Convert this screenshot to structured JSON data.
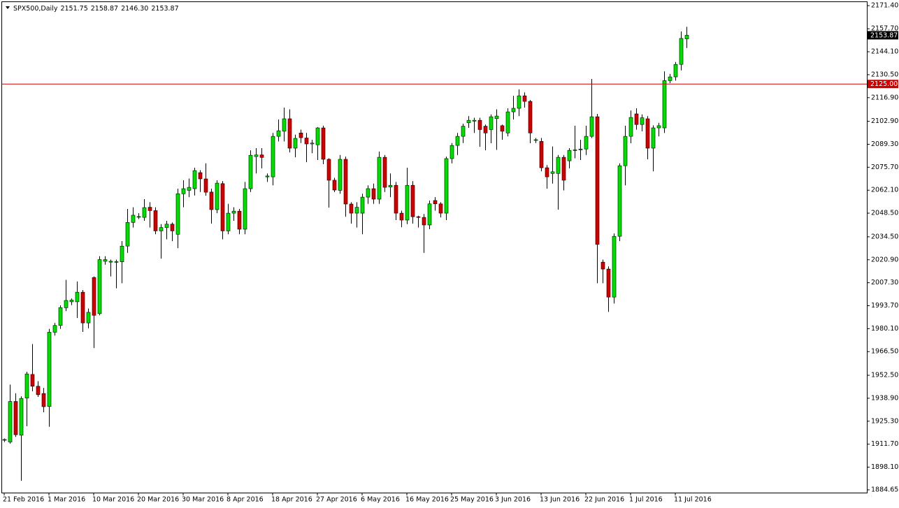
{
  "chart_data": {
    "type": "candlestick",
    "header": {
      "symbol": "SPX500,Daily",
      "ohlc": [
        "2151.75",
        "2158.87",
        "2146.30",
        "2153.87"
      ]
    },
    "categories": [
      "21 Feb 2016",
      null,
      null,
      null,
      null,
      null,
      null,
      null,
      "1 Mar 2016",
      null,
      null,
      null,
      null,
      null,
      null,
      null,
      "10 Mar 2016",
      null,
      null,
      null,
      null,
      null,
      null,
      null,
      "20 Mar 2016",
      null,
      null,
      null,
      null,
      null,
      null,
      null,
      "30 Mar 2016",
      null,
      null,
      null,
      null,
      null,
      null,
      null,
      "8 Apr 2016",
      null,
      null,
      null,
      null,
      null,
      null,
      null,
      "18 Apr 2016",
      null,
      null,
      null,
      null,
      null,
      null,
      null,
      "27 Apr 2016",
      null,
      null,
      null,
      null,
      null,
      null,
      null,
      "6 May 2016",
      null,
      null,
      null,
      null,
      null,
      null,
      null,
      "16 May 2016",
      null,
      null,
      null,
      null,
      null,
      null,
      null,
      "25 May 2016",
      null,
      null,
      null,
      null,
      null,
      null,
      null,
      "3 Jun 2016",
      null,
      null,
      null,
      null,
      null,
      null,
      null,
      "13 Jun 2016",
      null,
      null,
      null,
      null,
      null,
      null,
      null,
      "22 Jun 2016",
      null,
      null,
      null,
      null,
      null,
      null,
      null,
      "1 Jul 2016",
      null,
      null,
      null,
      null,
      null,
      null,
      null,
      "11 Jul 2016",
      null,
      null
    ],
    "open": [
      1914,
      1913,
      1937,
      1917,
      1939,
      1953,
      1946,
      1941.7,
      1934,
      1978,
      1982,
      1992.5,
      1996,
      1996,
      2001.7,
      1983.5,
      2010.4,
      1989,
      2020,
      2019.5,
      2019.8,
      2019.7,
      2029,
      2043,
      2046.5,
      2046,
      2052,
      2050,
      2038,
      2040,
      2042,
      2036,
      2060,
      2062,
      2063,
      2072.5,
      2068.8,
      2061,
      2050.6,
      2066,
      2038,
      2048.5,
      2049.7,
      2039,
      2063,
      2082,
      2083,
      2070,
      2070,
      2094,
      2097,
      2104.4,
      2087,
      2096,
      2093,
      2089.5,
      2089,
      2099,
      2080.4,
      2068,
      2062,
      2080.4,
      2053.9,
      2048.5,
      2048.5,
      2058,
      2063,
      2056.8,
      2081.6,
      2064,
      2065,
      2048.5,
      2044.4,
      2065,
      2046.4,
      2046,
      2041.5,
      2056,
      2054,
      2048.5,
      2080.8,
      2088.6,
      2094,
      2102,
      2103,
      2103.5,
      2100,
      2098,
      2104.5,
      2100.3,
      2096,
      2108.5,
      2110.6,
      2118,
      2114.7,
      2092,
      2091,
      2075.4,
      2072,
      2072,
      2081.6,
      2079.5,
      2085.7,
      2086,
      2086.5,
      2094,
      2105.6,
      2019.5,
      2015.4,
      1998.8,
      2034.8,
      2076.6,
      2094,
      2107.3,
      2101,
      2104.4,
      2087,
      2099,
      2099,
      2127,
      2129.2,
      2136.6,
      2151.75
    ],
    "high": [
      1915,
      1947,
      1941.8,
      1940,
      1954.6,
      1971,
      1949,
      1945,
      1980,
      1983.5,
      1993.9,
      2009,
      1998,
      2008,
      2003,
      1992,
      2011,
      2023,
      2023,
      2021,
      2021,
      2032,
      2051,
      2052,
      2048.5,
      2056.8,
      2055,
      2052,
      2042,
      2044,
      2043,
      2063,
      2068,
      2069,
      2075.4,
      2074,
      2078,
      2063,
      2068,
      2067.5,
      2054,
      2052,
      2051,
      2067,
      2085.7,
      2087,
      2087,
      2072,
      2096,
      2104,
      2111,
      2110,
      2095,
      2098,
      2096,
      2092,
      2099.5,
      2100.3,
      2081,
      2069.4,
      2083,
      2082,
      2055,
      2055,
      2060,
      2065,
      2066,
      2085,
      2083,
      2072,
      2067,
      2050,
      2075.4,
      2067.5,
      2047,
      2048,
      2056,
      2058,
      2055,
      2082,
      2090,
      2096,
      2101.5,
      2106,
      2105,
      2105,
      2101,
      2107,
      2110,
      2101,
      2110.6,
      2118,
      2121.8,
      2120,
      2115.5,
      2093,
      2093,
      2077,
      2088,
      2083,
      2083,
      2087,
      2100.3,
      2092,
      2100.3,
      2128,
      2107.3,
      2021,
      2017,
      2036.5,
      2078,
      2100.3,
      2109.3,
      2110.6,
      2107,
      2106,
      2100.5,
      2102,
      2132.5,
      2131,
      2138,
      2156.1,
      2158.87
    ],
    "low": [
      1913,
      1912,
      1916,
      1890,
      1922.3,
      1943,
      1939.7,
      1930.6,
      1922,
      1976,
      1980,
      1990.5,
      1994,
      1986.4,
      1978.2,
      1980.3,
      1968.6,
      1988,
      2018,
      2011,
      2004,
      2007,
      2025,
      2040,
      2045,
      2044,
      2040,
      2036,
      2021.6,
      2033,
      2031.9,
      2027.8,
      2052,
      2058,
      2059,
      2061,
      2058.8,
      2042.3,
      2048.5,
      2033,
      2036,
      2044,
      2036,
      2036,
      2061,
      2072,
      2075,
      2067,
      2065,
      2091,
      2091,
      2084.5,
      2081.6,
      2090,
      2078.7,
      2084,
      2080,
      2077.5,
      2051.8,
      2061,
      2060,
      2046.4,
      2042.3,
      2040,
      2036,
      2054,
      2054,
      2054,
      2061,
      2058,
      2044.4,
      2040.2,
      2042,
      2042.3,
      2040,
      2025,
      2039,
      2050,
      2046,
      2044.4,
      2078,
      2083,
      2090,
      2099,
      2096,
      2087.8,
      2085.7,
      2089.9,
      2086,
      2092,
      2094,
      2104,
      2106,
      2111,
      2089.9,
      2090,
      2073.3,
      2063,
      2066,
      2050.6,
      2062,
      2075,
      2081,
      2080,
      2083,
      2093,
      2007,
      2007,
      1990,
      1995,
      2031.9,
      2065,
      2089.9,
      2098,
      2097,
      2080.4,
      2073.3,
      2094,
      2096,
      2125.5,
      2127,
      2133,
      2146.3
    ],
    "close": [
      1914.5,
      1937,
      1917.3,
      1938.8,
      1953.3,
      1946,
      1941,
      1933.9,
      1978,
      1982,
      1992.6,
      1996.8,
      1997,
      2001.7,
      1983.5,
      1989.8,
      1988,
      2021,
      2021,
      2020,
      2019.8,
      2029,
      2043,
      2047.3,
      2046.5,
      2051.8,
      2050,
      2038,
      2040,
      2042,
      2038,
      2060,
      2063,
      2063.8,
      2073.7,
      2068.8,
      2060.9,
      2050.6,
      2066.3,
      2038,
      2048.5,
      2049.7,
      2039,
      2063,
      2082.8,
      2083,
      2081.5,
      2070.5,
      2094,
      2097.3,
      2104.4,
      2087,
      2092.8,
      2093.2,
      2089.5,
      2090,
      2099,
      2080.4,
      2068,
      2062.2,
      2080.4,
      2053.9,
      2048.5,
      2052,
      2058,
      2063,
      2056.8,
      2081.6,
      2063.8,
      2065,
      2048.5,
      2044.4,
      2065,
      2046.4,
      2046,
      2041.5,
      2054,
      2054,
      2048.5,
      2080.8,
      2088.6,
      2094,
      2100,
      2103.5,
      2103.5,
      2098,
      2096,
      2105.6,
      2106,
      2097,
      2108.5,
      2110.6,
      2118,
      2114.7,
      2096,
      2092,
      2075.4,
      2070,
      2073,
      2081.6,
      2068,
      2085.7,
      2086,
      2086.5,
      2094,
      2105.6,
      2030,
      2015.4,
      1998.8,
      2034.8,
      2076.6,
      2094,
      2105.2,
      2101,
      2105,
      2087,
      2099,
      2100.3,
      2127,
      2129.2,
      2136.6,
      2152,
      2153.87
    ],
    "up_color": "#00e000",
    "down_color": "#d00000",
    "ylim": [
      1883.0,
      2173.5
    ],
    "yticks": [
      {
        "value": 2171.4,
        "label": "2171.40"
      },
      {
        "value": 2157.7,
        "label": "2157.70"
      },
      {
        "value": 2144.1,
        "label": "2144.10"
      },
      {
        "value": 2130.5,
        "label": "2130.50"
      },
      {
        "value": 2116.9,
        "label": "2116.90"
      },
      {
        "value": 2102.9,
        "label": "2102.90"
      },
      {
        "value": 2089.3,
        "label": "2089.30"
      },
      {
        "value": 2075.7,
        "label": "2075.70"
      },
      {
        "value": 2062.1,
        "label": "2062.10"
      },
      {
        "value": 2048.5,
        "label": "2048.50"
      },
      {
        "value": 2034.5,
        "label": "2034.50"
      },
      {
        "value": 2020.9,
        "label": "2020.90"
      },
      {
        "value": 2007.3,
        "label": "2007.30"
      },
      {
        "value": 1993.7,
        "label": "1993.70"
      },
      {
        "value": 1980.1,
        "label": "1980.10"
      },
      {
        "value": 1966.5,
        "label": "1966.50"
      },
      {
        "value": 1952.5,
        "label": "1952.50"
      },
      {
        "value": 1938.9,
        "label": "1938.90"
      },
      {
        "value": 1925.3,
        "label": "1925.30"
      },
      {
        "value": 1911.7,
        "label": "1911.70"
      },
      {
        "value": 1898.1,
        "label": "1898.10"
      },
      {
        "value": 1884.65,
        "label": "1884.65"
      }
    ],
    "level": {
      "value": 2125.0,
      "label": "2125.00",
      "color": "#cc0000"
    },
    "last_price": {
      "value": 2153.87,
      "label": "2153.87"
    }
  }
}
